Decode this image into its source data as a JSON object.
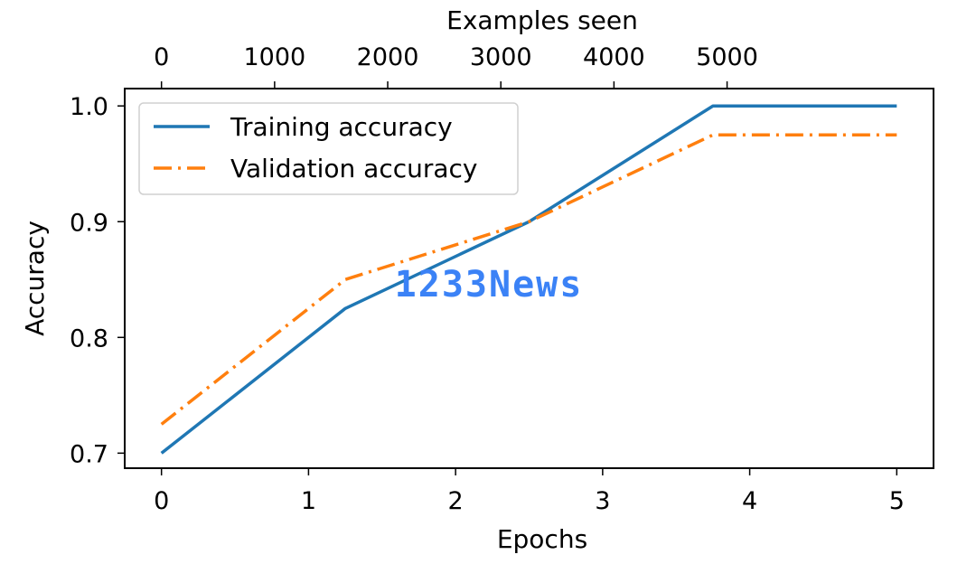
{
  "chart_data": {
    "type": "line",
    "xlabel": "Epochs",
    "ylabel": "Accuracy",
    "secondary_xlabel": "Examples seen",
    "xlim": [
      -0.25,
      5.25
    ],
    "ylim": [
      0.687,
      1.015
    ],
    "secondary_xlim": [
      -325,
      6825
    ],
    "x_ticks": [
      "0",
      "1",
      "2",
      "3",
      "4",
      "5"
    ],
    "y_ticks": [
      "0.7",
      "0.8",
      "0.9",
      "1.0"
    ],
    "secondary_x_ticks": [
      "0",
      "1000",
      "2000",
      "3000",
      "4000",
      "5000"
    ],
    "grid": false,
    "legend_position": "top-left",
    "series": [
      {
        "name": "Training accuracy",
        "style": "solid",
        "color": "#1f77b4",
        "x": [
          0,
          1.25,
          2.5,
          3.75,
          5
        ],
        "y": [
          0.7,
          0.825,
          0.9,
          1.0,
          1.0
        ]
      },
      {
        "name": "Validation accuracy",
        "style": "dashdot",
        "color": "#ff7f0e",
        "x": [
          0,
          1.25,
          2.5,
          3.75,
          5
        ],
        "y": [
          0.725,
          0.85,
          0.9,
          0.975,
          0.975
        ]
      }
    ]
  },
  "watermark": {
    "text": "1233News",
    "color": "#3b82f6"
  }
}
